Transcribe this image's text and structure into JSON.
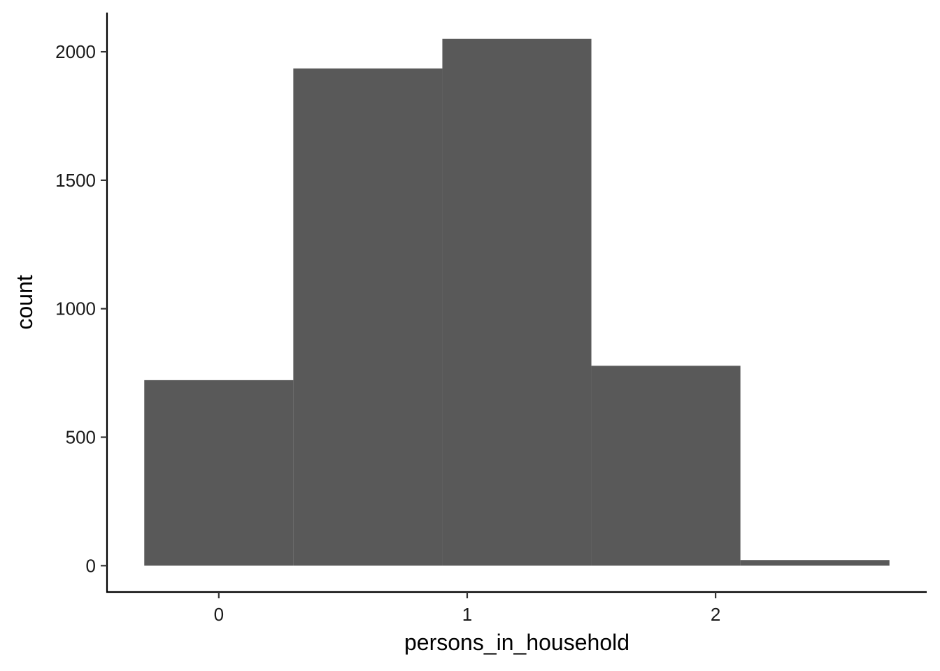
{
  "chart_data": {
    "type": "bar",
    "subtype": "histogram",
    "xlabel": "persons_in_household",
    "ylabel": "count",
    "bar_color": "#595959",
    "bins": [
      {
        "x_start": -0.3,
        "x_end": 0.3,
        "count": 722
      },
      {
        "x_start": 0.3,
        "x_end": 0.9,
        "count": 1935
      },
      {
        "x_start": 0.9,
        "x_end": 1.5,
        "count": 2050
      },
      {
        "x_start": 1.5,
        "x_end": 2.1,
        "count": 778
      },
      {
        "x_start": 2.1,
        "x_end": 2.7,
        "count": 22
      }
    ],
    "xticks": [
      0,
      1,
      2
    ],
    "xtick_labels": [
      "0",
      "1",
      "2"
    ],
    "yticks": [
      0,
      500,
      1000,
      1500,
      2000
    ],
    "ytick_labels": [
      "0",
      "500",
      "1000",
      "1500",
      "2000"
    ],
    "xlim": [
      -0.45,
      2.85
    ],
    "ylim": [
      -102.5,
      2152.5
    ],
    "grid": false,
    "legend": "none"
  }
}
